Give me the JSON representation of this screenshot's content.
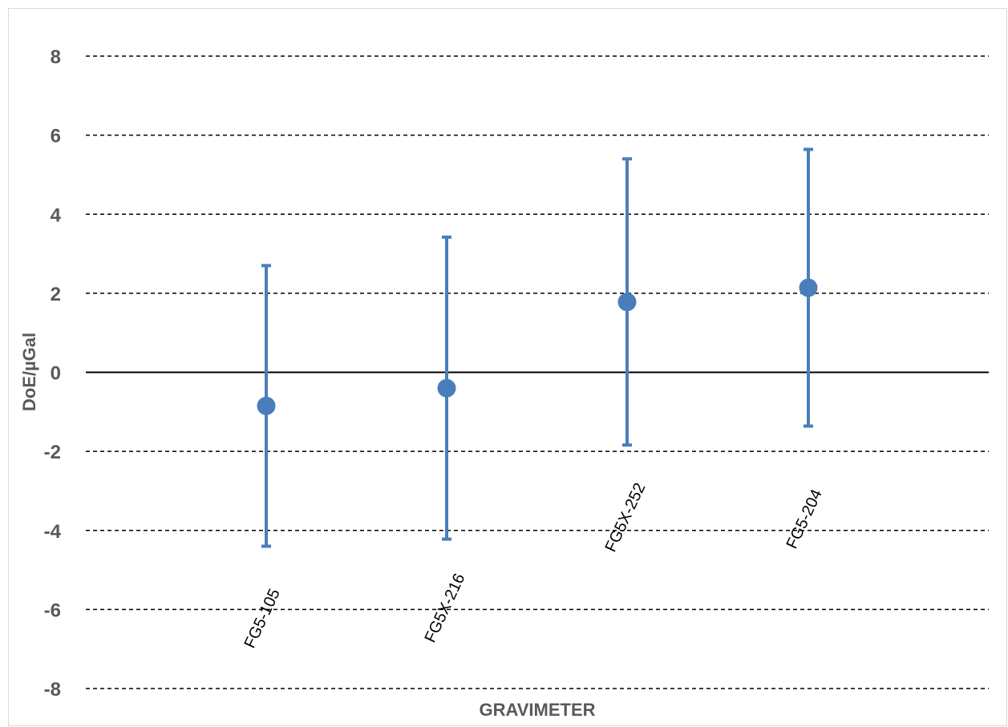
{
  "chart_data": {
    "type": "scatter",
    "xlabel": "GRAVIMETER",
    "ylabel": "DoE/µGal",
    "ylim": [
      -8,
      8
    ],
    "yticks": [
      8,
      6,
      4,
      2,
      0,
      -2,
      -4,
      -6,
      -8
    ],
    "grid": true,
    "categories": [
      "FG5-105",
      "FG5X-216",
      "FG5X-252",
      "FG5-204"
    ],
    "series": [
      {
        "values": [
          -0.85,
          -0.4,
          1.78,
          2.14
        ],
        "error_low": [
          -4.4,
          -4.22,
          -1.84,
          -1.36
        ],
        "error_high": [
          2.7,
          3.42,
          5.4,
          5.64
        ]
      }
    ],
    "colors": {
      "marker": "#4a7ebb",
      "grid": "#000000",
      "text": "#595959"
    }
  }
}
